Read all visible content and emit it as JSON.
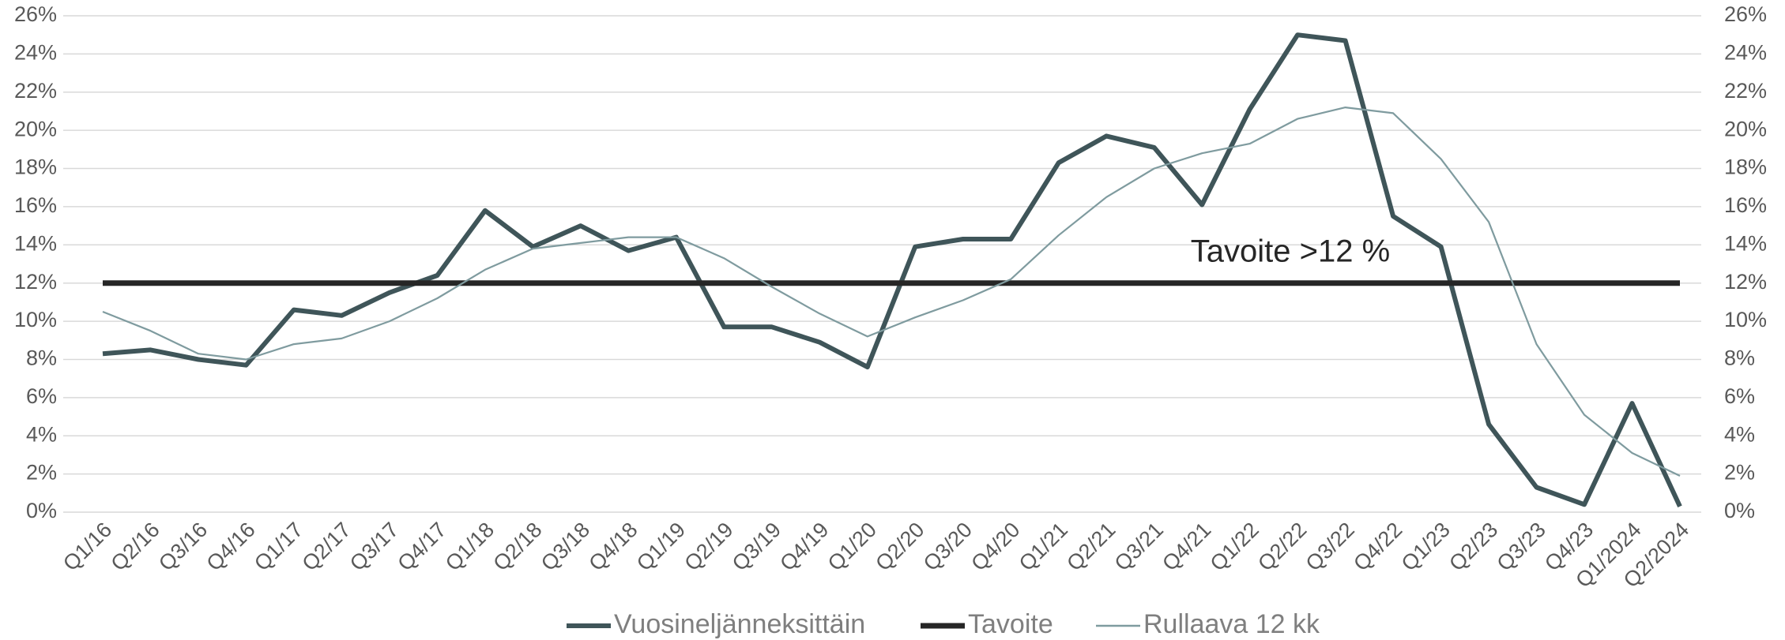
{
  "chart_data": {
    "type": "line",
    "annotation": "Tavoite >12 %",
    "categories": [
      "Q1/16",
      "Q2/16",
      "Q3/16",
      "Q4/16",
      "Q1/17",
      "Q2/17",
      "Q3/17",
      "Q4/17",
      "Q1/18",
      "Q2/18",
      "Q3/18",
      "Q4/18",
      "Q1/19",
      "Q2/19",
      "Q3/19",
      "Q4/19",
      "Q1/20",
      "Q2/20",
      "Q3/20",
      "Q4/20",
      "Q1/21",
      "Q2/21",
      "Q3/21",
      "Q4/21",
      "Q1/22",
      "Q2/22",
      "Q3/22",
      "Q4/22",
      "Q1/23",
      "Q2/23",
      "Q3/23",
      "Q4/23",
      "Q1/2024",
      "Q2/2024"
    ],
    "series": [
      {
        "name": "Vuosineljänneksittäin",
        "color": "#3f5559",
        "width": 6,
        "values": [
          8.3,
          8.5,
          8.0,
          7.7,
          10.6,
          10.3,
          11.5,
          12.4,
          15.8,
          13.9,
          15.0,
          13.7,
          14.4,
          9.7,
          9.7,
          8.9,
          7.6,
          13.9,
          14.3,
          14.3,
          18.3,
          19.7,
          19.1,
          16.1,
          21.1,
          25.0,
          24.7,
          15.5,
          13.9,
          4.6,
          1.3,
          0.4,
          5.7,
          0.3
        ]
      },
      {
        "name": "Tavoite",
        "color": "#262626",
        "width": 7,
        "values": [
          12,
          12,
          12,
          12,
          12,
          12,
          12,
          12,
          12,
          12,
          12,
          12,
          12,
          12,
          12,
          12,
          12,
          12,
          12,
          12,
          12,
          12,
          12,
          12,
          12,
          12,
          12,
          12,
          12,
          12,
          12,
          12,
          12,
          12
        ]
      },
      {
        "name": "Rullaava 12 kk",
        "color": "#7f9b9f",
        "width": 2.2,
        "values": [
          10.5,
          9.5,
          8.3,
          8.0,
          8.8,
          9.1,
          10.0,
          11.2,
          12.7,
          13.8,
          14.1,
          14.4,
          14.4,
          13.3,
          11.8,
          10.4,
          9.2,
          10.2,
          11.1,
          12.2,
          14.5,
          16.5,
          18.0,
          18.8,
          19.3,
          20.6,
          21.2,
          20.9,
          18.5,
          15.2,
          8.8,
          5.1,
          3.1,
          1.9
        ]
      }
    ],
    "ylim": [
      0,
      26
    ],
    "yticks": [
      {
        "value": 0,
        "label": "0%"
      },
      {
        "value": 2,
        "label": "2%"
      },
      {
        "value": 4,
        "label": "4%"
      },
      {
        "value": 6,
        "label": "6%"
      },
      {
        "value": 8,
        "label": "8%"
      },
      {
        "value": 10,
        "label": "10%"
      },
      {
        "value": 12,
        "label": "12%"
      },
      {
        "value": 14,
        "label": "14%"
      },
      {
        "value": 16,
        "label": "16%"
      },
      {
        "value": 18,
        "label": "18%"
      },
      {
        "value": 20,
        "label": "20%"
      },
      {
        "value": 22,
        "label": "22%"
      },
      {
        "value": 24,
        "label": "24%"
      },
      {
        "value": 26,
        "label": "26%"
      }
    ],
    "y2lim": [
      0,
      26
    ],
    "y2ticks": [
      {
        "value": 0,
        "label": "0%"
      },
      {
        "value": 2,
        "label": "2%"
      },
      {
        "value": 4,
        "label": "4%"
      },
      {
        "value": 6,
        "label": "6%"
      },
      {
        "value": 8,
        "label": "8%"
      },
      {
        "value": 10,
        "label": "10%"
      },
      {
        "value": 12,
        "label": "12%"
      },
      {
        "value": 14,
        "label": "14%"
      },
      {
        "value": 16,
        "label": "16%"
      },
      {
        "value": 18,
        "label": "18%"
      },
      {
        "value": 20,
        "label": "20%"
      },
      {
        "value": 22,
        "label": "22%"
      },
      {
        "value": 24,
        "label": "24%"
      },
      {
        "value": 26,
        "label": "26%"
      }
    ],
    "grid": true,
    "legend": "bottom"
  }
}
